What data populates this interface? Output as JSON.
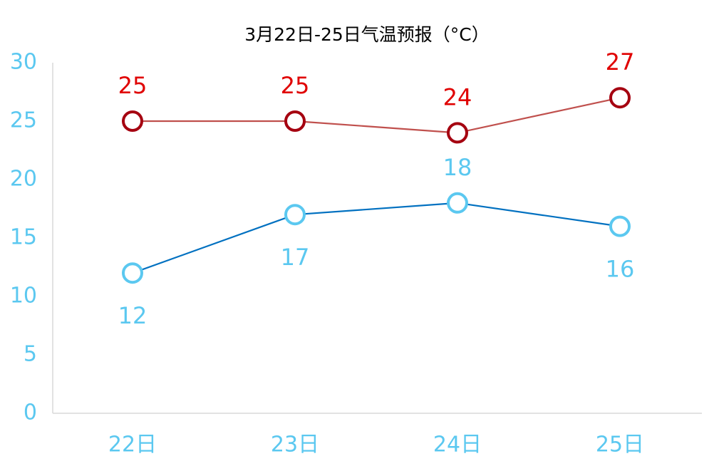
{
  "chart_data": {
    "type": "line",
    "title": "3月22日-25日气温预报（°C）",
    "categories": [
      "22日",
      "23日",
      "24日",
      "25日"
    ],
    "series": [
      {
        "color": "#c0504d",
        "marker_color": "#a50010",
        "label_color": "#e00000",
        "values": [
          25,
          25,
          24,
          27
        ]
      },
      {
        "color": "#0070c0",
        "marker_color": "#5bc8f0",
        "label_color": "#5bc8f0",
        "values": [
          12,
          17,
          18,
          16
        ]
      }
    ],
    "ylim": [
      0,
      30
    ],
    "yticks": [
      0,
      5,
      10,
      15,
      20,
      25,
      30
    ],
    "grid": false
  }
}
